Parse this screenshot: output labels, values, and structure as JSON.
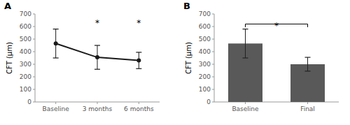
{
  "chart_data": [
    {
      "type": "line",
      "title": "A",
      "categories": [
        "Baseline",
        "3 months",
        "6 months"
      ],
      "values": [
        465,
        355,
        330
      ],
      "errors": [
        115,
        95,
        65
      ],
      "color": "#1a1a1a",
      "marker": "circle",
      "y_label": "CFT (μm)",
      "ylim": [
        0,
        700
      ],
      "yticks": [
        0,
        100,
        200,
        300,
        400,
        500,
        600,
        700
      ],
      "annotations": [
        {
          "text": "*",
          "x": "3 months",
          "y": 650
        },
        {
          "text": "*",
          "x": "6 months",
          "y": 650
        }
      ]
    },
    {
      "type": "bar",
      "title": "B",
      "categories": [
        "Baseline",
        "Final"
      ],
      "values": [
        465,
        300
      ],
      "errors": [
        115,
        55
      ],
      "color": "#595959",
      "y_label": "CFT (μm)",
      "ylim": [
        0,
        700
      ],
      "yticks": [
        0,
        100,
        200,
        300,
        400,
        500,
        600,
        700
      ],
      "bracket": {
        "from": "Baseline",
        "to": "Final",
        "y": 620,
        "drop": 25,
        "text": "*",
        "text_y": 630
      }
    }
  ]
}
